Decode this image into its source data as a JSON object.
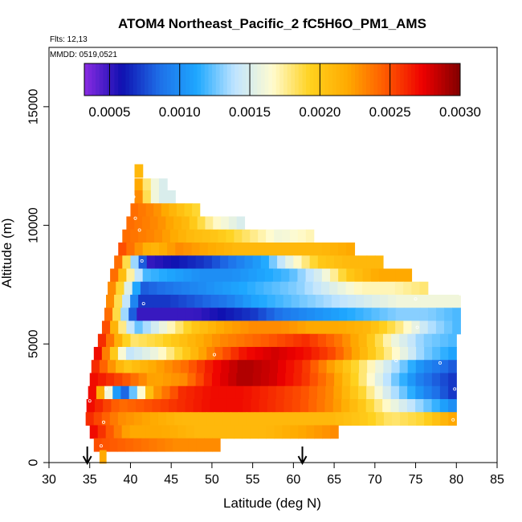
{
  "chart_data": {
    "type": "heatmap",
    "title": "ATOM4 Northeast_Pacific_2 fC5H6O_PM1_AMS",
    "subtitle_flights": "Flts: 12,13",
    "subtitle_dates": "MMDD: 0519,0521",
    "xlabel": "Latitude (deg N)",
    "ylabel": "Altitude (m)",
    "xlim": [
      30,
      85
    ],
    "ylim": [
      0,
      17500
    ],
    "x_ticks": [
      "30",
      "35",
      "40",
      "45",
      "50",
      "55",
      "60",
      "65",
      "70",
      "75",
      "80",
      "85"
    ],
    "y_ticks": [
      "0",
      "5000",
      "10000",
      "15000"
    ],
    "colorbar": {
      "range": [
        0.00032,
        0.003
      ],
      "ticks": [
        "0.0005",
        "0.0010",
        "0.0015",
        "0.0020",
        "0.0025",
        "0.0030"
      ],
      "colors": [
        "#8a2be2",
        "#1010b0",
        "#1e6fe8",
        "#1ea8ff",
        "#bfe4ff",
        "#fffbd0",
        "#ffd21f",
        "#ffaa00",
        "#ff5a00",
        "#ee0000",
        "#800000"
      ]
    },
    "arrows_latitude": [
      34.7,
      61.1
    ],
    "layers": [
      {
        "alt": 12300,
        "lat0": 40.5,
        "lat1": 41.5,
        "values": [
          0.0021,
          0.0016,
          0.0014
        ]
      },
      {
        "alt": 11700,
        "lat0": 40.5,
        "lat1": 44.5,
        "values": [
          0.0022,
          0.0018,
          0.0016,
          0.0015
        ]
      },
      {
        "alt": 11200,
        "lat0": 40.5,
        "lat1": 45.5,
        "values": [
          0.0023,
          0.0017,
          0.0015,
          0.0015
        ]
      },
      {
        "alt": 10650,
        "lat0": 40.0,
        "lat1": 48.5,
        "values": [
          0.0024,
          0.0023,
          0.0021,
          0.0019
        ]
      },
      {
        "alt": 10100,
        "lat0": 39.5,
        "lat1": 54.0,
        "values": [
          0.0024,
          0.0023,
          0.0021,
          0.0017,
          0.0015
        ]
      },
      {
        "alt": 9550,
        "lat0": 39.0,
        "lat1": 62.5,
        "values": [
          0.0024,
          0.0023,
          0.0021,
          0.002,
          0.0018,
          0.0016,
          0.0017
        ]
      },
      {
        "alt": 9000,
        "lat0": 38.5,
        "lat1": 67.5,
        "values": [
          0.0025,
          0.0021,
          0.0023,
          0.0022,
          0.0021,
          0.0021,
          0.0021,
          0.0021,
          0.0022
        ]
      },
      {
        "alt": 8450,
        "lat0": 38.0,
        "lat1": 71.0,
        "values": [
          0.0024,
          0.0005,
          0.0006,
          0.0007,
          0.0009,
          0.0011,
          0.0016,
          0.002,
          0.0021,
          0.0021
        ]
      },
      {
        "alt": 7900,
        "lat0": 37.5,
        "lat1": 74.5,
        "values": [
          0.0024,
          0.0012,
          0.0011,
          0.001,
          0.001,
          0.0011,
          0.0012,
          0.0015,
          0.002,
          0.0022,
          0.0022
        ]
      },
      {
        "alt": 7350,
        "lat0": 37.2,
        "lat1": 76.5,
        "values": [
          0.0023,
          0.0008,
          0.0009,
          0.001,
          0.0011,
          0.0012,
          0.0013,
          0.0015,
          0.0017,
          0.0017,
          0.0018
        ]
      },
      {
        "alt": 6800,
        "lat0": 37.0,
        "lat1": 80.5,
        "values": [
          0.0023,
          0.0007,
          0.0007,
          0.0008,
          0.0009,
          0.0011,
          0.0012,
          0.0013,
          0.0014,
          0.0015,
          0.0016,
          0.0016,
          0.0016
        ]
      },
      {
        "alt": 6250,
        "lat0": 36.8,
        "lat1": 80.5,
        "values": [
          0.0024,
          0.0005,
          0.0005,
          0.0005,
          0.0006,
          0.0007,
          0.0009,
          0.001,
          0.0011,
          0.0012,
          0.0013,
          0.0013,
          0.0012
        ]
      },
      {
        "alt": 5700,
        "lat0": 36.5,
        "lat1": 80.5,
        "values": [
          0.0025,
          0.0012,
          0.0016,
          0.002,
          0.0022,
          0.0023,
          0.0023,
          0.0022,
          0.0022,
          0.0021,
          0.0018,
          0.0014,
          0.0012
        ]
      },
      {
        "alt": 5150,
        "lat0": 36.0,
        "lat1": 80.0,
        "values": [
          0.0026,
          0.0018,
          0.0019,
          0.0021,
          0.0023,
          0.0024,
          0.0025,
          0.0026,
          0.0024,
          0.0021,
          0.0016,
          0.0013,
          0.0012
        ]
      },
      {
        "alt": 4600,
        "lat0": 35.5,
        "lat1": 80.0,
        "values": [
          0.0027,
          0.0014,
          0.0016,
          0.002,
          0.0024,
          0.0027,
          0.0028,
          0.0027,
          0.0025,
          0.0021,
          0.0017,
          0.0013,
          0.0011
        ]
      },
      {
        "alt": 4050,
        "lat0": 35.2,
        "lat1": 80.0,
        "values": [
          0.0026,
          0.002,
          0.0022,
          0.0024,
          0.0027,
          0.0029,
          0.0028,
          0.0026,
          0.0022,
          0.0018,
          0.0014,
          0.001,
          0.0008
        ]
      },
      {
        "alt": 3500,
        "lat0": 35.0,
        "lat1": 80.0,
        "values": [
          0.0027,
          0.0025,
          0.0022,
          0.0023,
          0.0027,
          0.0029,
          0.0028,
          0.0026,
          0.0023,
          0.0018,
          0.0013,
          0.0009,
          0.0007
        ]
      },
      {
        "alt": 2950,
        "lat0": 34.8,
        "lat1": 80.0,
        "values": [
          0.0027,
          0.0007,
          0.0022,
          0.0026,
          0.0027,
          0.0027,
          0.0026,
          0.0025,
          0.0023,
          0.0019,
          0.0014,
          0.001,
          0.0007
        ]
      },
      {
        "alt": 2400,
        "lat0": 34.6,
        "lat1": 80.0,
        "values": [
          0.0027,
          0.0024,
          0.0025,
          0.0026,
          0.0027,
          0.0027,
          0.0026,
          0.0025,
          0.0023,
          0.002,
          0.0016,
          0.0013,
          0.001
        ]
      },
      {
        "alt": 1850,
        "lat0": 34.5,
        "lat1": 80.0,
        "values": [
          0.0026,
          0.0023,
          0.0022,
          0.0021,
          0.0021,
          0.0021,
          0.0021,
          0.0021,
          0.0021,
          0.002,
          0.0018,
          0.0019,
          0.0022
        ]
      },
      {
        "alt": 1300,
        "lat0": 35.0,
        "lat1": 65.5,
        "values": [
          0.0027,
          0.0022,
          0.0022,
          0.0021,
          0.0021,
          0.0021,
          0.0022,
          0.0023
        ]
      },
      {
        "alt": 750,
        "lat0": 35.5,
        "lat1": 51.0,
        "values": [
          0.0025,
          0.0024,
          0.0023,
          0.0023
        ]
      },
      {
        "alt": 250,
        "lat0": 36.2,
        "lat1": 37.0,
        "values": [
          0.0022,
          0.0021
        ]
      }
    ],
    "markers": [
      {
        "lat": 40.2,
        "alt": 12100
      },
      {
        "lat": 40.4,
        "alt": 11200
      },
      {
        "lat": 40.6,
        "alt": 10300
      },
      {
        "lat": 41.1,
        "alt": 9800
      },
      {
        "lat": 41.4,
        "alt": 8500
      },
      {
        "lat": 41.6,
        "alt": 6700
      },
      {
        "lat": 50.3,
        "alt": 4550
      },
      {
        "lat": 72.6,
        "alt": 4300
      },
      {
        "lat": 75.0,
        "alt": 6900
      },
      {
        "lat": 75.2,
        "alt": 5700
      },
      {
        "lat": 75.5,
        "alt": 8700
      },
      {
        "lat": 78.0,
        "alt": 4200
      },
      {
        "lat": 79.8,
        "alt": 3100
      },
      {
        "lat": 79.6,
        "alt": 1800
      },
      {
        "lat": 37.0,
        "alt": 3100
      },
      {
        "lat": 36.7,
        "alt": 1700
      },
      {
        "lat": 36.4,
        "alt": 700
      },
      {
        "lat": 35.0,
        "alt": 2600
      },
      {
        "lat": 80.5,
        "alt": 7100
      }
    ]
  }
}
